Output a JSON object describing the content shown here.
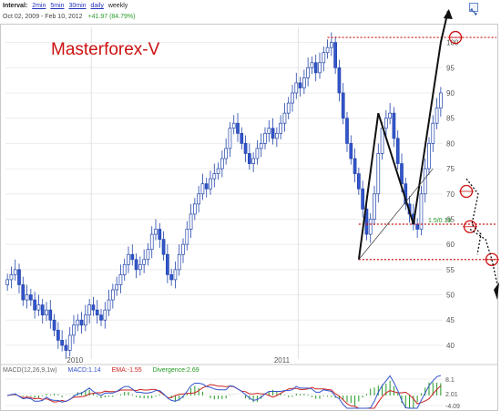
{
  "header": {
    "interval_label": "Interval:",
    "intervals": [
      "2min",
      "5min",
      "30min",
      "daily"
    ],
    "current_interval": "weekly",
    "date_range": "Oct 02, 2009  -  Feb 10, 2012",
    "change": "+41.97 (84.79%)"
  },
  "brand": "Masterforex-V",
  "annotation_label": "1.5/0.19",
  "macd": {
    "params": "MACD(12,26,9,1w)",
    "macd": "MACD:1.14",
    "ema": "EMA:-1.55",
    "divergence": "Divergence:2.69",
    "ticks": [
      "8.1",
      "2.01",
      "-4.09"
    ]
  },
  "colors": {
    "candle_up": "#3355cc",
    "candle_down": "#3355cc",
    "annotation": "#cc1111",
    "macd_line": "#3355cc",
    "ema_line": "#cc2222",
    "divergence": "#229922"
  },
  "chart_data": {
    "type": "candlestick",
    "title": "",
    "x_tick_labels": [
      "2010",
      "2011"
    ],
    "y_tick_labels": [
      "40",
      "45",
      "50",
      "55",
      "60",
      "65",
      "70",
      "75",
      "80",
      "85",
      "90",
      "95",
      "100"
    ],
    "ylim": [
      38,
      103
    ],
    "grid": true,
    "series": [
      {
        "name": "",
        "close": [
          53,
          54,
          55,
          52,
          49,
          50,
          49,
          47,
          48,
          46,
          47,
          45,
          43,
          41,
          40,
          39,
          42,
          44,
          45,
          44,
          46,
          48,
          47,
          46,
          45,
          47,
          49,
          51,
          52,
          54,
          56,
          58,
          57,
          55,
          56,
          57,
          59,
          62,
          63,
          61,
          58,
          54,
          53,
          55,
          58,
          60,
          63,
          66,
          68,
          70,
          72,
          71,
          73,
          74,
          75,
          77,
          79,
          83,
          84,
          82,
          80,
          78,
          76,
          77,
          79,
          80,
          82,
          83,
          81,
          82,
          84,
          86,
          88,
          90,
          92,
          91,
          93,
          95,
          96,
          94,
          96,
          98,
          99,
          100,
          95,
          90,
          85,
          80,
          77,
          74,
          71,
          67,
          62,
          65,
          70,
          78,
          83,
          85,
          86,
          81,
          76,
          72,
          68,
          66,
          64,
          63,
          70,
          75,
          80,
          84,
          87,
          90
        ]
      }
    ],
    "annotations": {
      "horizontal_levels": [
        101,
        64,
        57
      ],
      "zigzag": [
        [
          90,
          57
        ],
        [
          95,
          86
        ],
        [
          104,
          64
        ],
        [
          111,
          100
        ]
      ]
    }
  }
}
